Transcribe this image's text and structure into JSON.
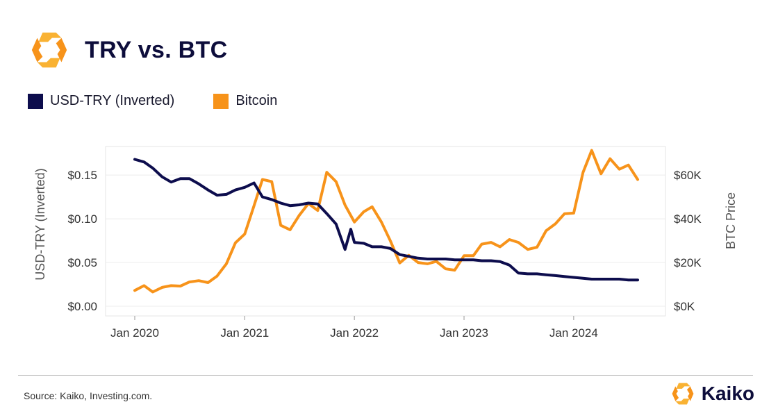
{
  "header": {
    "title": "TRY vs. BTC",
    "logo_icon": "kaiko-hexagon-logo-icon"
  },
  "colors": {
    "try": "#0d0d4d",
    "btc": "#f7931a",
    "grid": "#e8e8e8",
    "logo_orange": "#f7931a",
    "logo_yellow": "#f9b233"
  },
  "footer": {
    "source": "Source: Kaiko, Investing.com.",
    "brand": "Kaiko"
  },
  "chart_data": {
    "type": "line",
    "title": "TRY vs. BTC",
    "legend_placement": "top-left",
    "grid": true,
    "x_ticks": [
      "Jan 2020",
      "Jan 2021",
      "Jan 2022",
      "Jan 2023",
      "Jan 2024"
    ],
    "xlim": [
      "2020-01-01",
      "2024-08-01"
    ],
    "y_left": {
      "label": "USD-TRY (Inverted)",
      "ticks": [
        "$0.00",
        "$0.05",
        "$0.10",
        "$0.15"
      ],
      "tick_values": [
        0,
        0.05,
        0.1,
        0.15
      ],
      "lim": [
        0,
        0.17
      ]
    },
    "y_right": {
      "label": "BTC Price",
      "ticks": [
        "$0K",
        "$20K",
        "$40K",
        "$60K"
      ],
      "tick_values": [
        0,
        20000,
        40000,
        60000
      ],
      "lim": [
        0,
        68000
      ]
    },
    "series": [
      {
        "name": "USD-TRY (Inverted)",
        "axis": "left",
        "x": [
          "2020-01-01",
          "2020-02-01",
          "2020-03-01",
          "2020-04-01",
          "2020-05-01",
          "2020-06-01",
          "2020-07-01",
          "2020-08-01",
          "2020-09-01",
          "2020-10-01",
          "2020-11-01",
          "2020-12-01",
          "2021-01-01",
          "2021-02-01",
          "2021-03-01",
          "2021-04-01",
          "2021-05-01",
          "2021-06-01",
          "2021-07-01",
          "2021-08-01",
          "2021-09-01",
          "2021-10-01",
          "2021-11-01",
          "2021-12-01",
          "2021-12-20",
          "2022-01-01",
          "2022-02-01",
          "2022-03-01",
          "2022-04-01",
          "2022-05-01",
          "2022-06-01",
          "2022-07-01",
          "2022-08-01",
          "2022-09-01",
          "2022-10-01",
          "2022-11-01",
          "2022-12-01",
          "2023-01-01",
          "2023-02-01",
          "2023-03-01",
          "2023-04-01",
          "2023-05-01",
          "2023-06-01",
          "2023-07-01",
          "2023-08-01",
          "2023-09-01",
          "2023-10-01",
          "2023-11-01",
          "2023-12-01",
          "2024-01-01",
          "2024-02-01",
          "2024-03-01",
          "2024-04-01",
          "2024-05-01",
          "2024-06-01",
          "2024-07-01",
          "2024-08-01"
        ],
        "values": [
          0.168,
          0.165,
          0.158,
          0.148,
          0.142,
          0.146,
          0.146,
          0.14,
          0.133,
          0.127,
          0.128,
          0.133,
          0.136,
          0.141,
          0.125,
          0.122,
          0.118,
          0.115,
          0.116,
          0.118,
          0.117,
          0.106,
          0.094,
          0.065,
          0.088,
          0.073,
          0.072,
          0.068,
          0.068,
          0.066,
          0.059,
          0.057,
          0.055,
          0.054,
          0.054,
          0.054,
          0.053,
          0.053,
          0.053,
          0.052,
          0.052,
          0.051,
          0.047,
          0.038,
          0.037,
          0.037,
          0.036,
          0.035,
          0.034,
          0.033,
          0.032,
          0.031,
          0.031,
          0.031,
          0.031,
          0.03,
          0.03
        ]
      },
      {
        "name": "Bitcoin",
        "axis": "right",
        "x": [
          "2020-01-01",
          "2020-02-01",
          "2020-03-01",
          "2020-04-01",
          "2020-05-01",
          "2020-06-01",
          "2020-07-01",
          "2020-08-01",
          "2020-09-01",
          "2020-10-01",
          "2020-11-01",
          "2020-12-01",
          "2021-01-01",
          "2021-02-01",
          "2021-03-01",
          "2021-04-01",
          "2021-05-01",
          "2021-06-01",
          "2021-07-01",
          "2021-08-01",
          "2021-09-01",
          "2021-10-01",
          "2021-11-01",
          "2021-12-01",
          "2022-01-01",
          "2022-02-01",
          "2022-03-01",
          "2022-04-01",
          "2022-05-01",
          "2022-06-01",
          "2022-07-01",
          "2022-08-01",
          "2022-09-01",
          "2022-10-01",
          "2022-11-01",
          "2022-12-01",
          "2023-01-01",
          "2023-02-01",
          "2023-03-01",
          "2023-04-01",
          "2023-05-01",
          "2023-06-01",
          "2023-07-01",
          "2023-08-01",
          "2023-09-01",
          "2023-10-01",
          "2023-11-01",
          "2023-12-01",
          "2024-01-01",
          "2024-02-01",
          "2024-03-01",
          "2024-04-01",
          "2024-05-01",
          "2024-06-01",
          "2024-07-01",
          "2024-08-01"
        ],
        "values": [
          7200,
          9400,
          6500,
          8600,
          9400,
          9200,
          11100,
          11700,
          10800,
          13800,
          19400,
          29000,
          33000,
          46000,
          58000,
          57000,
          37000,
          35000,
          41500,
          47000,
          43800,
          61300,
          57000,
          46300,
          38500,
          43200,
          45500,
          38500,
          29800,
          19800,
          23300,
          20000,
          19400,
          20500,
          17100,
          16500,
          23100,
          23100,
          28400,
          29200,
          27200,
          30500,
          29200,
          26000,
          27000,
          34500,
          37700,
          42300,
          42600,
          61200,
          71300,
          60600,
          67500,
          62700,
          64600,
          58000
        ]
      }
    ]
  }
}
